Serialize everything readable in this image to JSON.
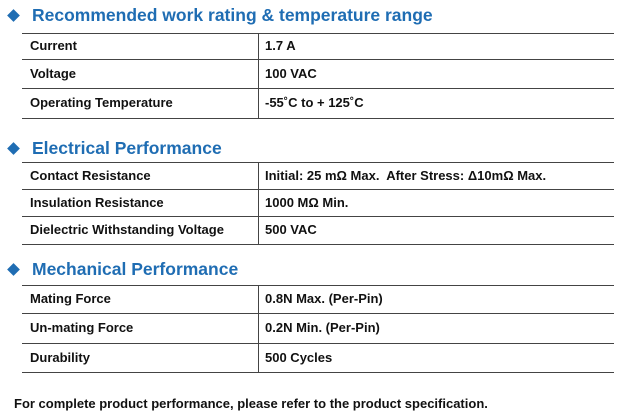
{
  "sections": [
    {
      "title": "Recommended work rating & temperature range",
      "rows": [
        [
          "Current",
          "1.7 A"
        ],
        [
          "Voltage",
          "100 VAC"
        ],
        [
          "Operating Temperature",
          "-55˚C to + 125˚C"
        ]
      ]
    },
    {
      "title": "Electrical Performance",
      "rows": [
        [
          "Contact Resistance",
          "Initial: 25 mΩ Max.  After Stress: Δ10mΩ Max."
        ],
        [
          "Insulation Resistance",
          "1000 MΩ Min."
        ],
        [
          "Dielectric Withstanding Voltage",
          "500 VAC"
        ]
      ]
    },
    {
      "title": "Mechanical Performance",
      "rows": [
        [
          "Mating Force",
          "0.8N Max. (Per-Pin)"
        ],
        [
          "Un-mating Force",
          "0.2N Min. (Per-Pin)"
        ],
        [
          "Durability",
          "500 Cycles"
        ]
      ]
    }
  ],
  "footer": "For complete product performance, please refer to the product specification."
}
